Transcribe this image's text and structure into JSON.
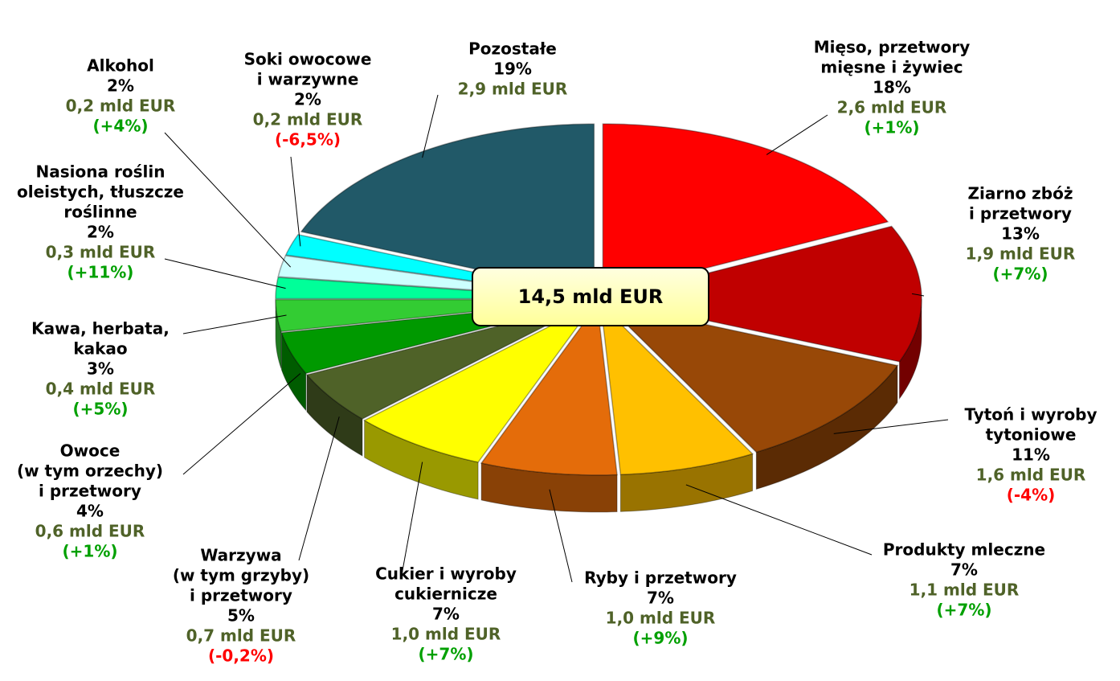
{
  "chart_data": {
    "type": "pie",
    "center_label": "14,5 mld EUR",
    "categories": [
      [
        "Mięso, przetwory",
        "mięsne i żywiec"
      ],
      [
        "Ziarno zbóż",
        "i przetwory"
      ],
      [
        "Tytoń i wyroby",
        "tytoniowe"
      ],
      [
        "Produkty mleczne"
      ],
      [
        "Ryby i przetwory"
      ],
      [
        "Cukier i wyroby",
        "cukiernicze"
      ],
      [
        "Warzywa",
        "(w tym grzyby)",
        "i przetwory"
      ],
      [
        "Owoce",
        "(w tym orzechy)",
        "i przetwory"
      ],
      [
        "Kawa, herbata,",
        "kakao"
      ],
      [
        "Nasiona roślin",
        "oleistych, tłuszcze",
        "roślinne"
      ],
      [
        "Alkohol"
      ],
      [
        "Soki owocowe",
        "i warzywne"
      ],
      [
        "Pozostałe"
      ]
    ],
    "values": [
      18,
      13,
      11,
      7,
      7,
      7,
      5,
      4,
      3,
      2,
      2,
      2,
      19
    ],
    "value_labels": [
      "18%",
      "13%",
      "11%",
      "7%",
      "7%",
      "7%",
      "5%",
      "4%",
      "3%",
      "2%",
      "2%",
      "2%",
      "19%"
    ],
    "amount_labels": [
      "2,6 mld EUR",
      "1,9 mld EUR",
      "1,6 mld EUR",
      "1,1 mld EUR",
      "1,0 mld EUR",
      "1,0 mld EUR",
      "0,7 mld EUR",
      "0,6 mld EUR",
      "0,4 mld EUR",
      "0,3 mld EUR",
      "0,2 mld EUR",
      "0,2 mld EUR",
      "2,9 mld EUR"
    ],
    "change_labels": [
      "(+1%)",
      "(+7%)",
      "(-4%)",
      "(+7%)",
      "(+9%)",
      "(+7%)",
      "(-0,2%)",
      "(+1%)",
      "(+5%)",
      "(+11%)",
      "(+4%)",
      "(-6,5%)",
      null
    ],
    "change_colors": [
      "#00a000",
      "#00a000",
      "#ff0000",
      "#00a000",
      "#00a000",
      "#00a000",
      "#ff0000",
      "#00a000",
      "#00a000",
      "#00a000",
      "#00a000",
      "#ff0000",
      null
    ],
    "amount_color": "#4f6228",
    "colors": [
      "#ff0000",
      "#c00000",
      "#984807",
      "#ffc000",
      "#e46c0a",
      "#ffff00",
      "#4f6228",
      "#009900",
      "#33cc33",
      "#00ff99",
      "#ccffff",
      "#00ffff",
      "#215968"
    ]
  }
}
